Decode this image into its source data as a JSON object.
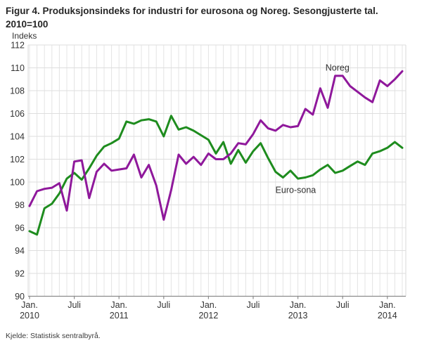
{
  "header": {
    "title": "Figur 4. Produksjonsindeks for industri for eurosona og Noreg. Sesongjusterte tal. 2010=100",
    "units_label": "Indeks"
  },
  "footer": {
    "source": "Kjelde: Statistisk sentralbyrå."
  },
  "chart_data": {
    "type": "line",
    "title": "Figur 4. Produksjonsindeks for industri for eurosona og Noreg. Sesongjusterte tal. 2010=100",
    "ylabel": "Indeks",
    "ylim": [
      90,
      112
    ],
    "y_ticks": [
      90,
      92,
      94,
      96,
      98,
      100,
      102,
      104,
      106,
      108,
      110,
      112
    ],
    "grid": "on",
    "legend_position": "inline-labels",
    "x_start": "2010-01",
    "x_end": "2014-03",
    "categories": [
      "2010-01",
      "2010-02",
      "2010-03",
      "2010-04",
      "2010-05",
      "2010-06",
      "2010-07",
      "2010-08",
      "2010-09",
      "2010-10",
      "2010-11",
      "2010-12",
      "2011-01",
      "2011-02",
      "2011-03",
      "2011-04",
      "2011-05",
      "2011-06",
      "2011-07",
      "2011-08",
      "2011-09",
      "2011-10",
      "2011-11",
      "2011-12",
      "2012-01",
      "2012-02",
      "2012-03",
      "2012-04",
      "2012-05",
      "2012-06",
      "2012-07",
      "2012-08",
      "2012-09",
      "2012-10",
      "2012-11",
      "2012-12",
      "2013-01",
      "2013-02",
      "2013-03",
      "2013-04",
      "2013-05",
      "2013-06",
      "2013-07",
      "2013-08",
      "2013-09",
      "2013-10",
      "2013-11",
      "2013-12",
      "2014-01",
      "2014-02",
      "2014-03"
    ],
    "x_tick_labels": [
      {
        "month_index": 0,
        "lines": [
          "Jan.",
          "2010"
        ]
      },
      {
        "month_index": 6,
        "lines": [
          "Juli"
        ]
      },
      {
        "month_index": 12,
        "lines": [
          "Jan.",
          "2011"
        ]
      },
      {
        "month_index": 18,
        "lines": [
          "Juli"
        ]
      },
      {
        "month_index": 24,
        "lines": [
          "Jan.",
          "2012"
        ]
      },
      {
        "month_index": 30,
        "lines": [
          "Juli"
        ]
      },
      {
        "month_index": 36,
        "lines": [
          "Jan.",
          "2013"
        ]
      },
      {
        "month_index": 42,
        "lines": [
          "Juli"
        ]
      },
      {
        "month_index": 48,
        "lines": [
          "Jan.",
          "2014"
        ]
      }
    ],
    "series": [
      {
        "name": "Euro-sona",
        "color": "#1e8c1e",
        "values": [
          95.7,
          95.4,
          97.7,
          98.1,
          99.0,
          100.3,
          100.8,
          100.2,
          101.2,
          102.3,
          103.1,
          103.4,
          103.8,
          105.3,
          105.1,
          105.4,
          105.5,
          105.3,
          104.0,
          105.8,
          104.6,
          104.8,
          104.5,
          104.1,
          103.7,
          102.5,
          103.5,
          101.6,
          102.8,
          101.7,
          102.7,
          103.4,
          102.1,
          100.9,
          100.4,
          101.0,
          100.3,
          100.4,
          100.6,
          101.1,
          101.5,
          100.8,
          101.0,
          101.4,
          101.8,
          101.5,
          102.5,
          102.7,
          103.0,
          103.5,
          103.0
        ]
      },
      {
        "name": "Noreg",
        "color": "#8f189b",
        "values": [
          97.9,
          99.2,
          99.4,
          99.5,
          99.9,
          97.5,
          101.8,
          101.9,
          98.6,
          100.9,
          101.6,
          101.0,
          101.1,
          101.2,
          102.4,
          100.4,
          101.5,
          99.7,
          96.7,
          99.3,
          102.4,
          101.6,
          102.2,
          101.5,
          102.5,
          102.0,
          102.0,
          102.5,
          103.4,
          103.3,
          104.2,
          105.4,
          104.7,
          104.5,
          105.0,
          104.8,
          104.9,
          106.4,
          105.9,
          108.2,
          106.5,
          109.3,
          109.3,
          108.4,
          107.9,
          107.4,
          107.0,
          108.9,
          108.4,
          109.0,
          109.7
        ]
      }
    ],
    "annotations": [
      {
        "text": "Noreg",
        "month_index": 41.3,
        "value": 110.0
      },
      {
        "text": "Euro-sona",
        "month_index": 35.7,
        "value": 99.3
      }
    ]
  }
}
